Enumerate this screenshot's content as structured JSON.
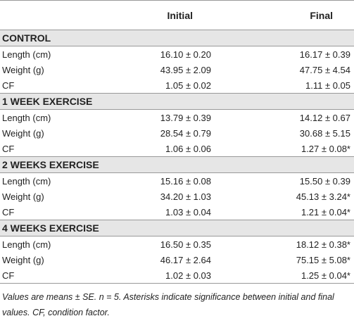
{
  "table": {
    "columns": [
      "Initial",
      "Final"
    ],
    "sections": [
      {
        "title": "CONTROL",
        "rows": [
          [
            "Length (cm)",
            "16.10 ± 0.20",
            "16.17 ± 0.39"
          ],
          [
            "Weight (g)",
            "43.95 ± 2.09",
            "47.75 ± 4.54"
          ],
          [
            "CF",
            "1.05 ± 0.02",
            "1.11 ± 0.05"
          ]
        ]
      },
      {
        "title": "1 WEEK EXERCISE",
        "rows": [
          [
            "Length (cm)",
            "13.79 ± 0.39",
            "14.12 ± 0.67"
          ],
          [
            "Weight (g)",
            "28.54 ± 0.79",
            "30.68 ± 5.15"
          ],
          [
            "CF",
            "1.06 ± 0.06",
            "1.27 ± 0.08*"
          ]
        ]
      },
      {
        "title": "2 WEEKS EXERCISE",
        "rows": [
          [
            "Length (cm)",
            "15.16 ± 0.08",
            "15.50 ± 0.39"
          ],
          [
            "Weight (g)",
            "34.20 ± 1.03",
            "45.13 ± 3.24*"
          ],
          [
            "CF",
            "1.03 ± 0.04",
            "1.21 ± 0.04*"
          ]
        ]
      },
      {
        "title": "4 WEEKS EXERCISE",
        "rows": [
          [
            "Length (cm)",
            "16.50 ± 0.35",
            "18.12 ± 0.38*"
          ],
          [
            "Weight (g)",
            "46.17 ± 2.64",
            "75.15 ± 5.08*"
          ],
          [
            "CF",
            "1.02 ± 0.03",
            "1.25 ± 0.04*"
          ]
        ]
      }
    ],
    "footnote": "Values are means ± SE. n = 5. Asterisks indicate significance between initial and final values. CF, condition factor."
  }
}
